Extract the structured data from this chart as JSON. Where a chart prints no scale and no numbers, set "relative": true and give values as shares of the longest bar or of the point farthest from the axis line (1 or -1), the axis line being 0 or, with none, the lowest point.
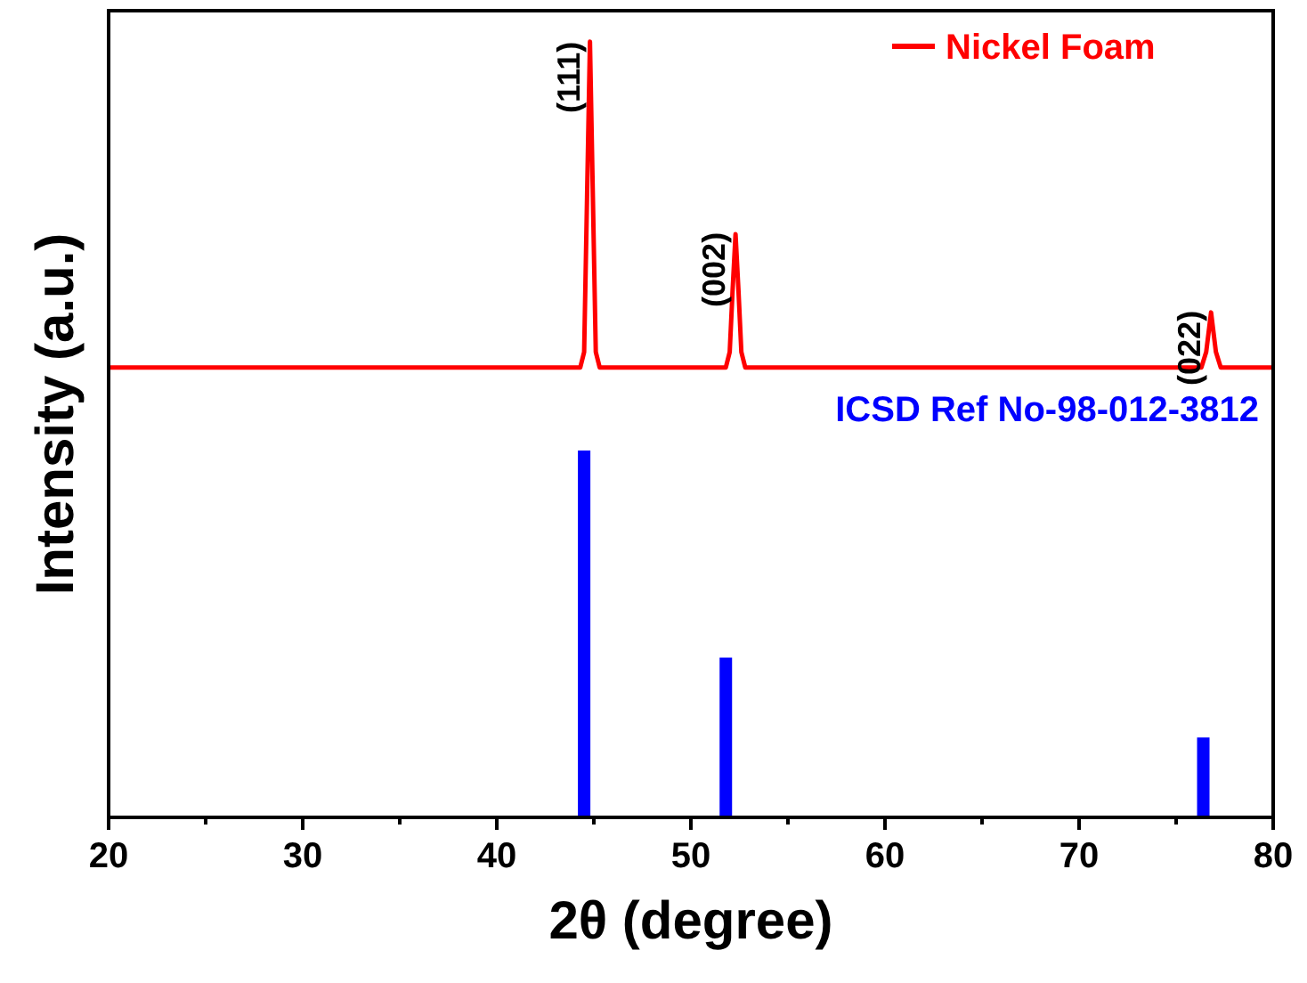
{
  "chart_data": {
    "type": "line",
    "relative": true,
    "xlabel": "2θ (degree)",
    "ylabel": "Intensity (a.u.)",
    "xlim": [
      20,
      80
    ],
    "xticks": [
      20,
      {
        "value": 25,
        "label": null
      },
      30,
      {
        "value": 35,
        "label": null
      },
      40,
      {
        "value": 45,
        "label": null
      },
      50,
      {
        "value": 55,
        "label": null
      },
      60,
      {
        "value": 65,
        "label": null
      },
      70,
      {
        "value": 75,
        "label": null
      },
      80
    ],
    "legend": "top right",
    "grid": false,
    "marker": "none",
    "line_style": "solid",
    "series": [
      {
        "name": "Nickel Foam",
        "color": "#ff0000",
        "x": [
          20,
          30,
          40,
          44.3,
          44.5,
          44.65,
          44.8,
          44.95,
          45.1,
          45.3,
          50,
          51.8,
          52.0,
          52.15,
          52.3,
          52.45,
          52.6,
          52.8,
          60,
          70,
          76.3,
          76.55,
          76.8,
          77.05,
          77.3,
          80
        ],
        "values": [
          0.58,
          0.58,
          0.58,
          0.58,
          0.6,
          0.8,
          1,
          0.8,
          0.6,
          0.58,
          0.58,
          0.58,
          0.6,
          0.68,
          0.752,
          0.68,
          0.6,
          0.58,
          0.58,
          0.58,
          0.58,
          0.6,
          0.651,
          0.6,
          0.58,
          0.58
        ]
      },
      {
        "name": "ICSD Ref No-98-012-3812",
        "type": "bar",
        "color": "#0000ff",
        "x": [
          44.5,
          51.8,
          76.4
        ],
        "values": [
          0.473,
          0.206,
          0.103
        ]
      }
    ],
    "annotations": [
      {
        "text": "(111)",
        "x": 44.8,
        "y": 1
      },
      {
        "text": "(002)",
        "x": 52.3,
        "y": 0.752
      },
      {
        "text": "(022)",
        "x": 76.8,
        "y": 0.651
      }
    ]
  }
}
